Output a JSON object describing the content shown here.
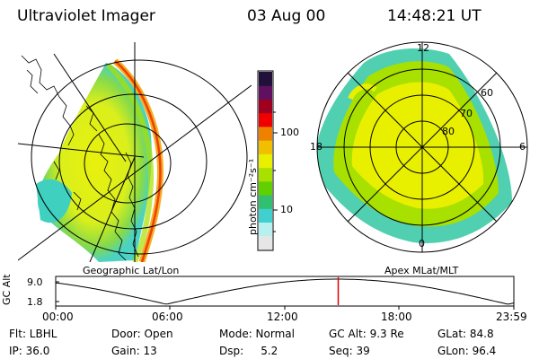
{
  "header": {
    "instrument": "Ultraviolet Imager",
    "date": "03 Aug 00",
    "time": "14:48:21 UT"
  },
  "left_panel": {
    "caption": "Geographic Lat/Lon"
  },
  "right_panel": {
    "caption": "Apex MLat/MLT",
    "mlt_labels": [
      "12",
      "18",
      "6",
      "0"
    ],
    "mlat_labels": [
      "60",
      "70",
      "80"
    ]
  },
  "colorbar": {
    "unit_label": "photon cm⁻²s⁻¹",
    "tick_labels": [
      "100",
      "10"
    ],
    "scale": "log",
    "colors": [
      "#e6e6e6",
      "#b8f0f0",
      "#40d0d0",
      "#30c070",
      "#60d000",
      "#a8e000",
      "#e8f000",
      "#f0c000",
      "#f08000",
      "#f00000",
      "#a00020",
      "#601060",
      "#20103a"
    ]
  },
  "timeline": {
    "axis_label": "GC Alt",
    "y_ticks": [
      "9.0",
      "1.8"
    ],
    "x_ticks": [
      "00:00",
      "06:00",
      "12:00",
      "18:00",
      "23:59"
    ],
    "current_marker_time": "14:48",
    "marker_color": "#e00000"
  },
  "status": {
    "filter": "Flt: LBHL",
    "door": "Door: Open",
    "mode": "Mode: Normal",
    "gc_alt": "GC Alt: 9.3 Re",
    "glat": "GLat: 84.8",
    "ip": "IP: 36.0",
    "gain": "Gain: 13",
    "dsp": "Dsp:     5.2",
    "seq": "Seq: 39",
    "glon": "GLon: 96.4"
  }
}
